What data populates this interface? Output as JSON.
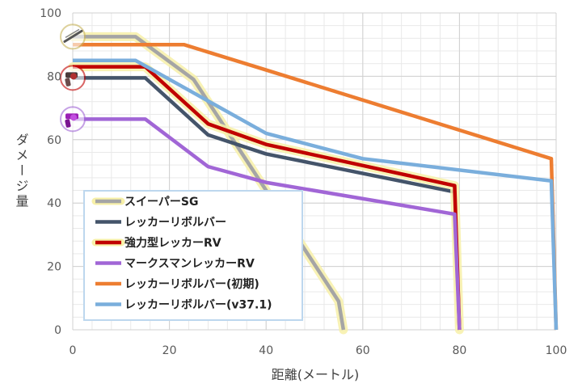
{
  "chart_data": {
    "type": "line",
    "title": "",
    "xlabel": "距離(メートル)",
    "ylabel": "ダメージ量",
    "xlim": [
      0,
      100
    ],
    "ylim": [
      0,
      100
    ],
    "x_ticks": [
      0,
      20,
      40,
      60,
      80,
      100
    ],
    "y_ticks": [
      0,
      20,
      40,
      60,
      80,
      100
    ],
    "grid": true,
    "legend_position": "bottom-left",
    "series": [
      {
        "name": "スイーパーSG",
        "color": "#a5a5a5",
        "glow": true,
        "icon": "shotgun-icon",
        "icon_ring": "#c8b45a",
        "x": [
          0,
          13,
          25,
          40,
          55,
          56
        ],
        "y": [
          92.5,
          92.5,
          79,
          44,
          9,
          0
        ]
      },
      {
        "name": "レッカーリボルバー",
        "color": "#44546a",
        "glow": false,
        "icon": "revolver-icon",
        "icon_ring": "#c00000",
        "x": [
          0,
          15,
          28,
          40,
          79,
          80
        ],
        "y": [
          79.5,
          79.5,
          61.5,
          55.5,
          43.5,
          0
        ]
      },
      {
        "name": "強力型レッカーRV",
        "color": "#c00000",
        "glow": true,
        "icon": null,
        "icon_ring": null,
        "x": [
          0,
          15,
          28,
          40,
          79,
          80
        ],
        "y": [
          83,
          83,
          65,
          58.5,
          45.5,
          0
        ]
      },
      {
        "name": "マークスマンレッカーRV",
        "color": "#a166d6",
        "glow": false,
        "icon": "marksman-revolver-icon",
        "icon_ring": "#a166d6",
        "x": [
          0,
          15,
          28,
          40,
          79,
          80
        ],
        "y": [
          66.5,
          66.5,
          51.5,
          46.5,
          36.5,
          0
        ]
      },
      {
        "name": "レッカーリボルバー(初期)",
        "color": "#ed7d31",
        "glow": false,
        "icon": null,
        "icon_ring": null,
        "x": [
          0,
          23,
          40,
          99,
          100
        ],
        "y": [
          90,
          90,
          82,
          54,
          0
        ]
      },
      {
        "name": "レッカーリボルバー(v37.1)",
        "color": "#7aaedc",
        "glow": false,
        "icon": null,
        "icon_ring": null,
        "x": [
          0,
          13,
          40,
          60,
          99,
          100
        ],
        "y": [
          85,
          85,
          62,
          54,
          47,
          0
        ]
      }
    ]
  }
}
